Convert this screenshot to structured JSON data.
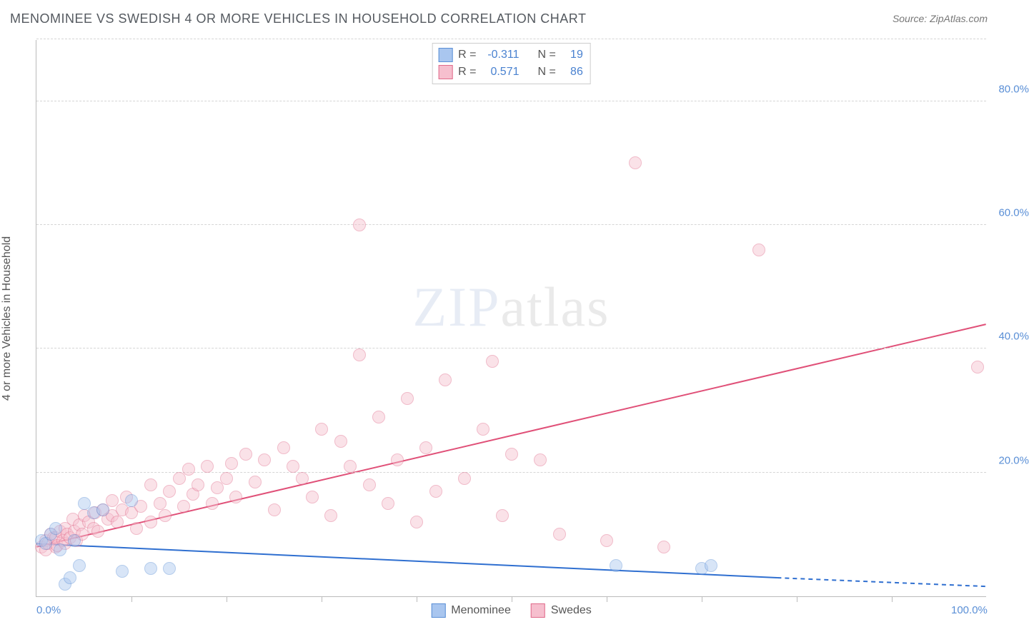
{
  "title": "MENOMINEE VS SWEDISH 4 OR MORE VEHICLES IN HOUSEHOLD CORRELATION CHART",
  "source_label": "Source:",
  "source_value": "ZipAtlas.com",
  "ylabel": "4 or more Vehicles in Household",
  "watermark": {
    "bold": "ZIP",
    "thin": "atlas"
  },
  "chart": {
    "type": "scatter",
    "xlim": [
      0,
      100
    ],
    "ylim": [
      0,
      90
    ],
    "xtick_labels": {
      "0": "0.0%",
      "100": "100.0%"
    },
    "ytick_labels": {
      "20": "20.0%",
      "40": "40.0%",
      "60": "60.0%",
      "80": "80.0%"
    },
    "grid_y": [
      20,
      40,
      60,
      80,
      90
    ],
    "vtick_x": [
      10,
      20,
      30,
      40,
      50,
      60,
      70,
      80,
      90
    ],
    "background_color": "#ffffff",
    "grid_color": "#d5d5d5",
    "axis_color": "#bbbbbb",
    "marker_radius": 9,
    "marker_opacity": 0.45,
    "series": {
      "menominee": {
        "label": "Menominee",
        "color_fill": "#a9c6ef",
        "color_stroke": "#5a8fd6",
        "r": -0.311,
        "n": 19,
        "trend": {
          "x1": 0,
          "y1": 8.5,
          "x2": 78,
          "y2": 3.0,
          "dash_x2": 100,
          "dash_y2": 1.6,
          "stroke": "#2f6fd0",
          "width": 2
        },
        "points": [
          [
            0.5,
            9
          ],
          [
            1,
            8.5
          ],
          [
            1.5,
            10
          ],
          [
            2,
            11
          ],
          [
            2.5,
            7.5
          ],
          [
            3,
            2
          ],
          [
            3.5,
            3
          ],
          [
            4,
            9
          ],
          [
            4.5,
            5
          ],
          [
            5,
            15
          ],
          [
            6,
            13.5
          ],
          [
            7,
            14
          ],
          [
            9,
            4
          ],
          [
            10,
            15.5
          ],
          [
            12,
            4.5
          ],
          [
            14,
            4.5
          ],
          [
            61,
            5
          ],
          [
            70,
            4.5
          ],
          [
            71,
            5
          ]
        ]
      },
      "swedes": {
        "label": "Swedes",
        "color_fill": "#f6bfce",
        "color_stroke": "#e06a8a",
        "r": 0.571,
        "n": 86,
        "trend": {
          "x1": 0,
          "y1": 8,
          "x2": 100,
          "y2": 44,
          "stroke": "#e05078",
          "width": 2
        },
        "points": [
          [
            0.5,
            8
          ],
          [
            1,
            9
          ],
          [
            1,
            7.5
          ],
          [
            1.2,
            8.5
          ],
          [
            1.5,
            10
          ],
          [
            1.8,
            9.5
          ],
          [
            2,
            8
          ],
          [
            2,
            9.5
          ],
          [
            2.2,
            8.2
          ],
          [
            2.5,
            10.5
          ],
          [
            2.8,
            9
          ],
          [
            3,
            8.5
          ],
          [
            3,
            11
          ],
          [
            3.2,
            10
          ],
          [
            3.5,
            9.5
          ],
          [
            3.8,
            12.5
          ],
          [
            4,
            10.5
          ],
          [
            4.2,
            9
          ],
          [
            4.5,
            11.5
          ],
          [
            4.8,
            10
          ],
          [
            5,
            13
          ],
          [
            5.5,
            12
          ],
          [
            6,
            11
          ],
          [
            6.2,
            13.5
          ],
          [
            6.5,
            10.5
          ],
          [
            7,
            14
          ],
          [
            7.5,
            12.5
          ],
          [
            8,
            13
          ],
          [
            8,
            15.5
          ],
          [
            8.5,
            12
          ],
          [
            9,
            14
          ],
          [
            9.5,
            16
          ],
          [
            10,
            13.5
          ],
          [
            10.5,
            11
          ],
          [
            11,
            14.5
          ],
          [
            12,
            18
          ],
          [
            12,
            12
          ],
          [
            13,
            15
          ],
          [
            13.5,
            13
          ],
          [
            14,
            17
          ],
          [
            15,
            19
          ],
          [
            15.5,
            14.5
          ],
          [
            16,
            20.5
          ],
          [
            16.5,
            16.5
          ],
          [
            17,
            18
          ],
          [
            18,
            21
          ],
          [
            18.5,
            15
          ],
          [
            19,
            17.5
          ],
          [
            20,
            19
          ],
          [
            20.5,
            21.5
          ],
          [
            21,
            16
          ],
          [
            22,
            23
          ],
          [
            23,
            18.5
          ],
          [
            24,
            22
          ],
          [
            25,
            14
          ],
          [
            26,
            24
          ],
          [
            27,
            21
          ],
          [
            28,
            19
          ],
          [
            29,
            16
          ],
          [
            30,
            27
          ],
          [
            31,
            13
          ],
          [
            32,
            25
          ],
          [
            33,
            21
          ],
          [
            34,
            39
          ],
          [
            34,
            60
          ],
          [
            35,
            18
          ],
          [
            36,
            29
          ],
          [
            37,
            15
          ],
          [
            38,
            22
          ],
          [
            39,
            32
          ],
          [
            40,
            12
          ],
          [
            41,
            24
          ],
          [
            42,
            17
          ],
          [
            43,
            35
          ],
          [
            45,
            19
          ],
          [
            47,
            27
          ],
          [
            48,
            38
          ],
          [
            49,
            13
          ],
          [
            50,
            23
          ],
          [
            53,
            22
          ],
          [
            55,
            10
          ],
          [
            60,
            9
          ],
          [
            63,
            70
          ],
          [
            66,
            8
          ],
          [
            76,
            56
          ],
          [
            99,
            37
          ]
        ]
      }
    }
  },
  "stats_box": {
    "r_label": "R =",
    "n_label": "N ="
  },
  "legend": {
    "items": [
      "menominee",
      "swedes"
    ]
  }
}
